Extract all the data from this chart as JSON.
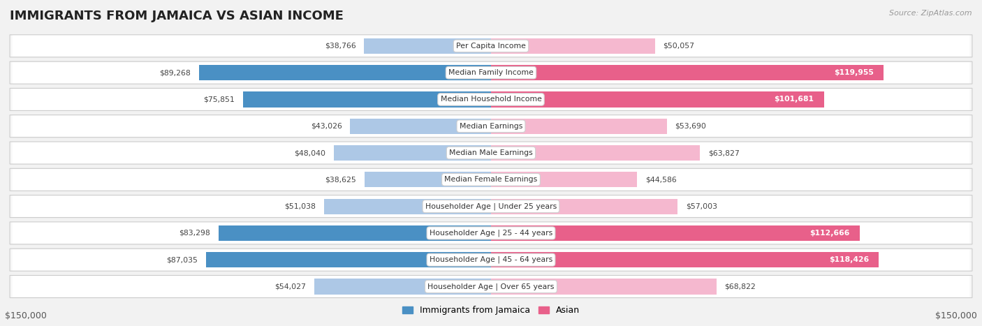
{
  "title": "IMMIGRANTS FROM JAMAICA VS ASIAN INCOME",
  "source": "Source: ZipAtlas.com",
  "categories": [
    "Per Capita Income",
    "Median Family Income",
    "Median Household Income",
    "Median Earnings",
    "Median Male Earnings",
    "Median Female Earnings",
    "Householder Age | Under 25 years",
    "Householder Age | 25 - 44 years",
    "Householder Age | 45 - 64 years",
    "Householder Age | Over 65 years"
  ],
  "jamaica_values": [
    38766,
    89268,
    75851,
    43026,
    48040,
    38625,
    51038,
    83298,
    87035,
    54027
  ],
  "asian_values": [
    50057,
    119955,
    101681,
    53690,
    63827,
    44586,
    57003,
    112666,
    118426,
    68822
  ],
  "jamaica_labels": [
    "$38,766",
    "$89,268",
    "$75,851",
    "$43,026",
    "$48,040",
    "$38,625",
    "$51,038",
    "$83,298",
    "$87,035",
    "$54,027"
  ],
  "asian_labels": [
    "$50,057",
    "$119,955",
    "$101,681",
    "$53,690",
    "$63,827",
    "$44,586",
    "$57,003",
    "$112,666",
    "$118,426",
    "$68,822"
  ],
  "jamaica_color_light": "#adc8e6",
  "jamaica_color_dark": "#4a90c4",
  "asian_color_light": "#f5b8cf",
  "asian_color_dark": "#e8608a",
  "jamaica_threshold": 60000,
  "asian_threshold": 90000,
  "max_value": 150000,
  "legend_jamaica": "Immigrants from Jamaica",
  "legend_asian": "Asian",
  "xlabel_left": "$150,000",
  "xlabel_right": "$150,000",
  "title_fontsize": 13,
  "bg_color": "#f2f2f2"
}
